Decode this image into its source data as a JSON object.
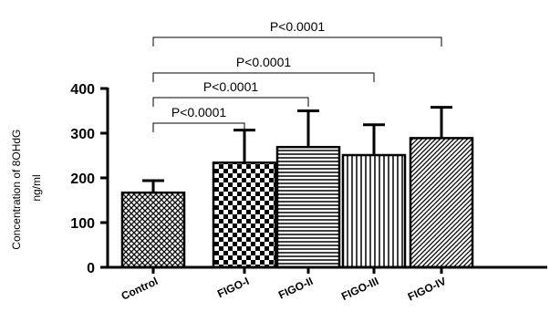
{
  "chart_data": {
    "type": "bar",
    "categories": [
      "Control",
      "FIGO-I",
      "FIGO-II",
      "FIGO-III",
      "FIGO-IV"
    ],
    "values": [
      167,
      234,
      269,
      251,
      289
    ],
    "error_upper": [
      194,
      307,
      350,
      319,
      358
    ],
    "patterns": [
      "grid",
      "checker",
      "horizontal",
      "vertical",
      "diagonal"
    ],
    "ylabel_line1": "Concentration of 8OHdG",
    "ylabel_line2": "ng/ml",
    "ylim": [
      0,
      400
    ],
    "yticks": [
      0,
      100,
      200,
      300,
      400
    ],
    "comparisons": [
      {
        "from": 0,
        "to": 1,
        "label": "P<0.0001"
      },
      {
        "from": 0,
        "to": 2,
        "label": "P<0.0001"
      },
      {
        "from": 0,
        "to": 3,
        "label": "P<0.0001"
      },
      {
        "from": 0,
        "to": 4,
        "label": "P<0.0001"
      }
    ]
  }
}
